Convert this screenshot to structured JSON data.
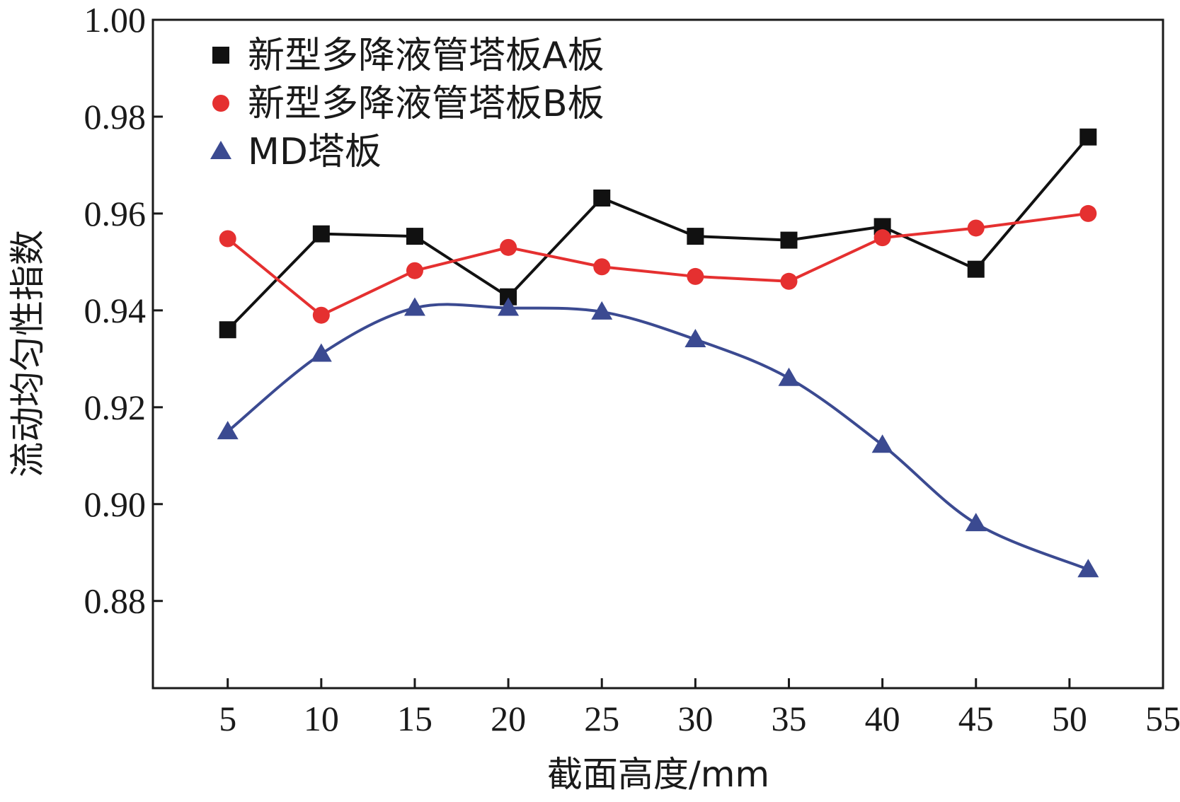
{
  "chart_data": {
    "type": "line",
    "xlabel": "截面高度/mm",
    "ylabel": "流动均匀性指数",
    "xlim": [
      1,
      55
    ],
    "ylim": [
      0.862,
      1.0
    ],
    "xticks": [
      5,
      10,
      15,
      20,
      25,
      30,
      35,
      40,
      45,
      50,
      55
    ],
    "yticks": [
      0.88,
      0.9,
      0.92,
      0.94,
      0.96,
      0.98,
      1.0
    ],
    "ytick_labels": [
      "0.88",
      "0.90",
      "0.92",
      "0.94",
      "0.96",
      "0.98",
      "1.00"
    ],
    "grid": false,
    "legend_position": "top-left",
    "x": [
      5,
      10,
      15,
      20,
      25,
      30,
      35,
      40,
      45,
      51
    ],
    "series": [
      {
        "name": "新型多降液管塔板A板",
        "color": "#111111",
        "marker": "square",
        "values": [
          0.936,
          0.9558,
          0.9553,
          0.9428,
          0.9632,
          0.9553,
          0.9545,
          0.9573,
          0.9485,
          0.9758
        ]
      },
      {
        "name": "新型多降液管塔板B板",
        "color": "#e53030",
        "marker": "circle",
        "values": [
          0.9548,
          0.939,
          0.9482,
          0.953,
          0.949,
          0.947,
          0.946,
          0.955,
          0.957,
          0.96
        ]
      },
      {
        "name": "MD塔板",
        "color": "#3b4a91",
        "marker": "triangle",
        "values": [
          0.915,
          0.931,
          0.9405,
          0.9405,
          0.9397,
          0.934,
          0.926,
          0.9122,
          0.896,
          0.8865
        ]
      }
    ]
  }
}
